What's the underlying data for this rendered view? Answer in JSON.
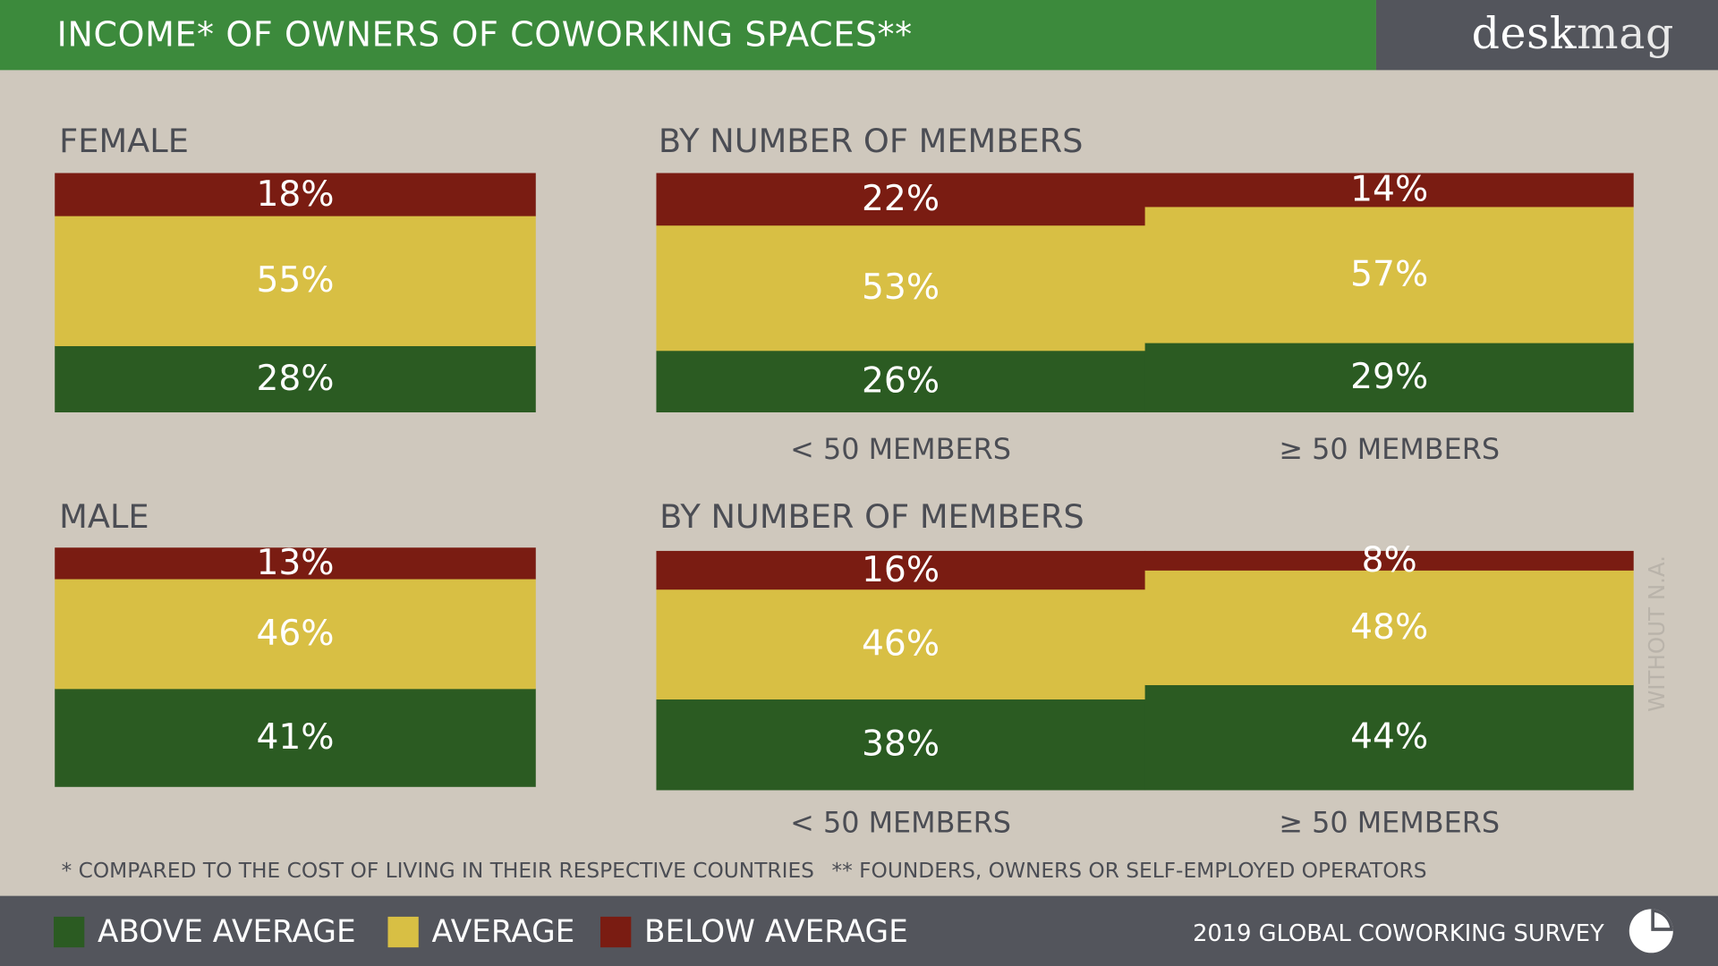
{
  "header": {
    "title": "INCOME* OF OWNERS OF COWORKING SPACES**",
    "brand_bold": "desk",
    "brand_light": "mag"
  },
  "colors": {
    "above_average": "#2b5b22",
    "average": "#d8bf44",
    "below_average": "#7a1c12",
    "header_green": "#3c8a3c",
    "dark_gray": "#53555c",
    "background": "#cfc8bd"
  },
  "sections": {
    "female": "FEMALE",
    "male": "MALE",
    "by_members_top": "BY NUMBER OF MEMBERS",
    "by_members_bottom": "BY NUMBER OF MEMBERS"
  },
  "chart_data": [
    {
      "type": "bar",
      "stacked": true,
      "title": "FEMALE",
      "categories": [
        ""
      ],
      "series": [
        {
          "name": "ABOVE AVERAGE",
          "values": [
            28
          ]
        },
        {
          "name": "AVERAGE",
          "values": [
            55
          ]
        },
        {
          "name": "BELOW AVERAGE",
          "values": [
            18
          ]
        }
      ],
      "labels": [
        [
          "28%"
        ],
        [
          "55%"
        ],
        [
          "18%"
        ]
      ],
      "ylim": [
        0,
        100
      ]
    },
    {
      "type": "bar",
      "stacked": true,
      "title": "BY NUMBER OF MEMBERS",
      "categories": [
        "< 50 MEMBERS",
        "≥ 50 MEMBERS"
      ],
      "series": [
        {
          "name": "ABOVE AVERAGE",
          "values": [
            26,
            29
          ]
        },
        {
          "name": "AVERAGE",
          "values": [
            53,
            57
          ]
        },
        {
          "name": "BELOW AVERAGE",
          "values": [
            22,
            14
          ]
        }
      ],
      "labels": [
        [
          "26%",
          "29%"
        ],
        [
          "53%",
          "57%"
        ],
        [
          "22%",
          "14%"
        ]
      ],
      "ylim": [
        0,
        100
      ]
    },
    {
      "type": "bar",
      "stacked": true,
      "title": "MALE",
      "categories": [
        ""
      ],
      "series": [
        {
          "name": "ABOVE AVERAGE",
          "values": [
            41
          ]
        },
        {
          "name": "AVERAGE",
          "values": [
            46
          ]
        },
        {
          "name": "BELOW AVERAGE",
          "values": [
            13
          ]
        }
      ],
      "labels": [
        [
          "41%"
        ],
        [
          "46%"
        ],
        [
          "13%"
        ]
      ],
      "ylim": [
        0,
        100
      ]
    },
    {
      "type": "bar",
      "stacked": true,
      "title": "BY NUMBER OF MEMBERS",
      "categories": [
        "< 50 MEMBERS",
        "≥ 50 MEMBERS"
      ],
      "series": [
        {
          "name": "ABOVE AVERAGE",
          "values": [
            38,
            44
          ]
        },
        {
          "name": "AVERAGE",
          "values": [
            46,
            48
          ]
        },
        {
          "name": "BELOW AVERAGE",
          "values": [
            16,
            8
          ]
        }
      ],
      "labels": [
        [
          "38%",
          "44%"
        ],
        [
          "46%",
          "48%"
        ],
        [
          "16%",
          "8%"
        ]
      ],
      "ylim": [
        0,
        100
      ]
    }
  ],
  "side_note": "WITHOUT N.A.",
  "footnotes": {
    "one": "* COMPARED TO THE COST OF LIVING IN THEIR RESPECTIVE COUNTRIES",
    "two": "** FOUNDERS, OWNERS OR SELF-EMPLOYED OPERATORS"
  },
  "legend": {
    "above": "ABOVE AVERAGE",
    "average": "AVERAGE",
    "below": "BELOW AVERAGE"
  },
  "footer": {
    "survey": "2019 GLOBAL COWORKING SURVEY",
    "icon": "pie-chart-icon"
  }
}
